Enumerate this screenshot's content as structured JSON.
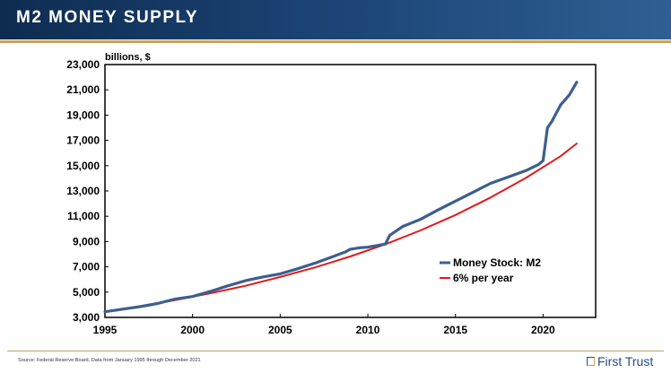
{
  "header": {
    "title": "M2 MONEY SUPPLY"
  },
  "footer": {
    "source": "Source: Federal Reserve Board. Data from January 1995 through December 2021",
    "logo_text": "First Trust"
  },
  "colors": {
    "m2": "#3c5f8f",
    "trend": "#e01b1b",
    "brand_navy": "#1f4e86",
    "brand_gold": "#c7a35a"
  },
  "chart_data": {
    "type": "line",
    "units_label": "billions, $",
    "ylim": [
      3000,
      23000
    ],
    "y_ticks": [
      3000,
      5000,
      7000,
      9000,
      11000,
      13000,
      15000,
      17000,
      19000,
      21000,
      23000
    ],
    "y_tick_labels": [
      "3,000",
      "5,000",
      "7,000",
      "9,000",
      "11,000",
      "13,000",
      "15,000",
      "17,000",
      "19,000",
      "21,000",
      "23,000"
    ],
    "xlim": [
      1995,
      2023
    ],
    "x_ticks": [
      1995,
      2000,
      2005,
      2010,
      2015,
      2020
    ],
    "x_tick_labels": [
      "1995",
      "2000",
      "2005",
      "2010",
      "2015",
      "2020"
    ],
    "grid": false,
    "legend_position": "bottom-right",
    "series": [
      {
        "name": "Money Stock: M2",
        "color": "#3c5f8f",
        "x": [
          1995,
          1996,
          1997,
          1998,
          1999,
          2000,
          2001,
          2002,
          2003,
          2004,
          2005,
          2006,
          2007,
          2008,
          2008.75,
          2009,
          2009.5,
          2010,
          2011,
          2011.25,
          2012,
          2013,
          2014,
          2015,
          2016,
          2017,
          2018,
          2019,
          2019.75,
          2020.0,
          2020.25,
          2020.5,
          2021,
          2021.5,
          2021.92
        ],
        "y": [
          3450,
          3650,
          3850,
          4100,
          4450,
          4650,
          5050,
          5500,
          5900,
          6200,
          6450,
          6850,
          7300,
          7800,
          8200,
          8400,
          8500,
          8550,
          8800,
          9500,
          10200,
          10750,
          11500,
          12200,
          12900,
          13600,
          14100,
          14600,
          15100,
          15400,
          18000,
          18500,
          19800,
          20600,
          21600
        ]
      },
      {
        "name": "6% per year",
        "color": "#e01b1b",
        "x": [
          1995,
          1997,
          1999,
          2001,
          2003,
          2005,
          2007,
          2009,
          2011,
          2013,
          2015,
          2017,
          2019,
          2021,
          2021.92
        ],
        "y": [
          3450,
          3880,
          4360,
          4900,
          5500,
          6200,
          6960,
          7820,
          8790,
          9880,
          11100,
          12480,
          14020,
          15750,
          16750
        ]
      }
    ]
  }
}
